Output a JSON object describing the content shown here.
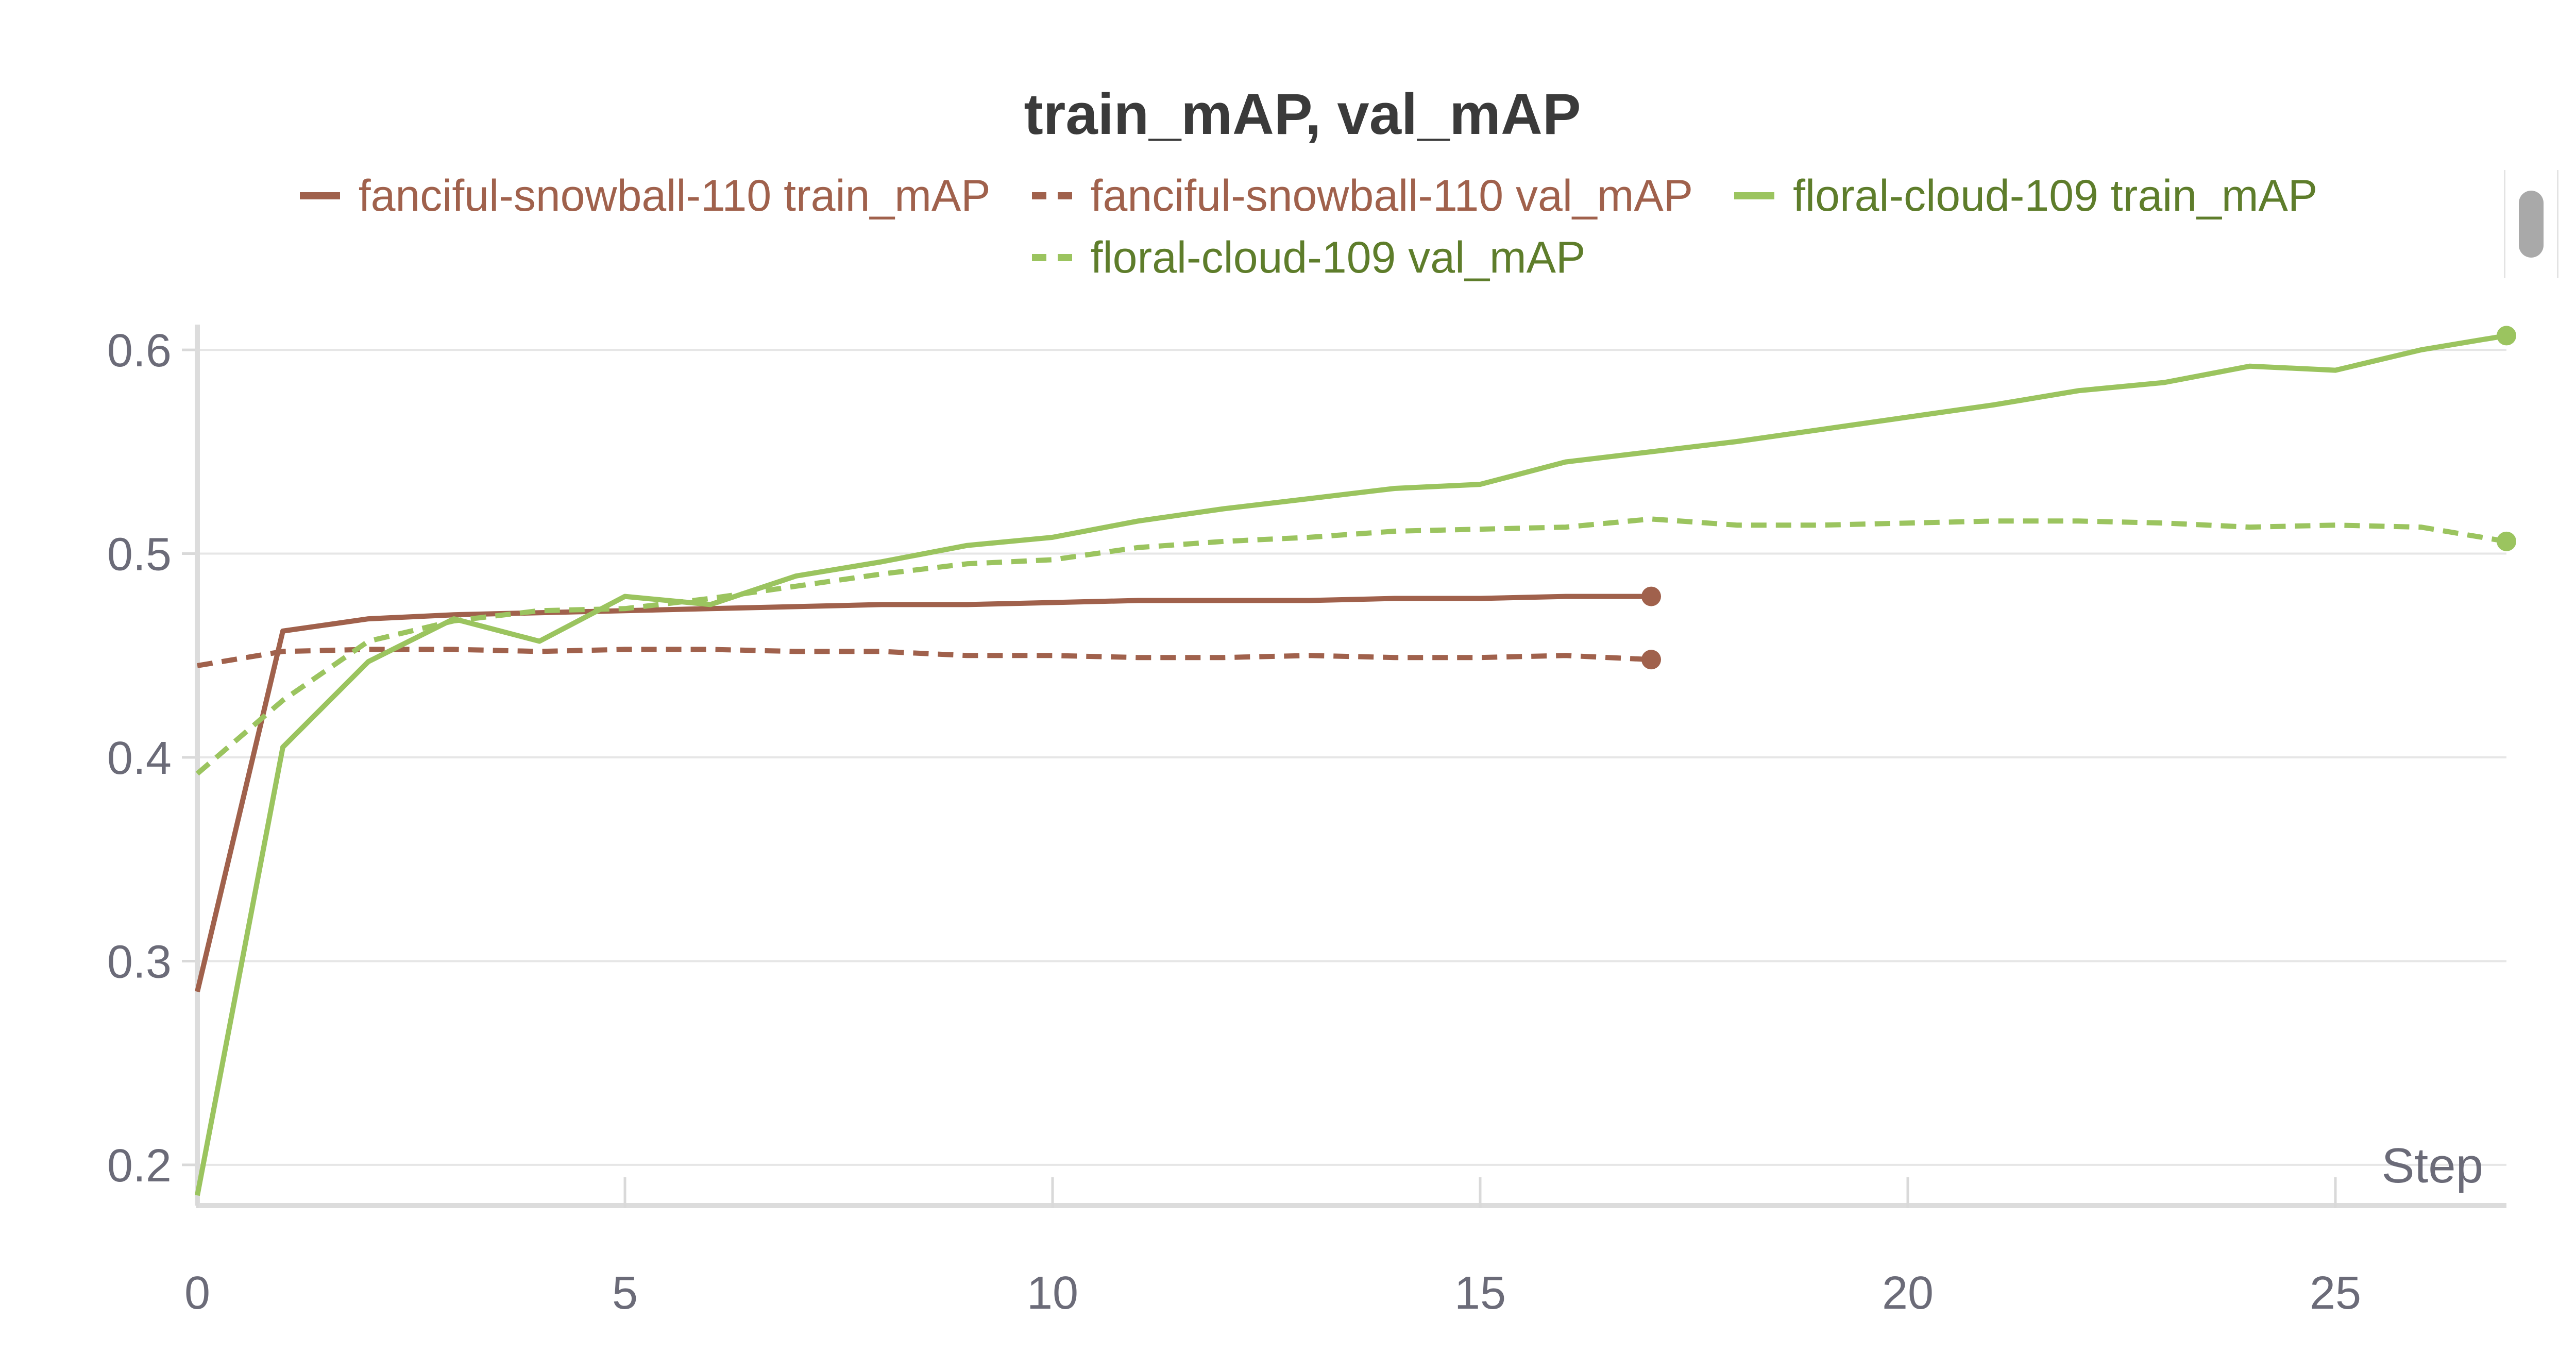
{
  "chart_data": {
    "type": "line",
    "title": "train_mAP, val_mAP",
    "xlabel": "Step",
    "ylabel": "",
    "xlim": [
      0,
      27
    ],
    "ylim": [
      0.18,
      0.62
    ],
    "x_ticks": [
      0,
      5,
      10,
      15,
      20,
      25
    ],
    "y_ticks": [
      0.2,
      0.3,
      0.4,
      0.5,
      0.6
    ],
    "x_tick_labels": [
      "0",
      "5",
      "10",
      "15",
      "20",
      "25"
    ],
    "y_tick_labels": [
      "0.2",
      "0.3",
      "0.4",
      "0.5",
      "0.6"
    ],
    "grid": true,
    "legend_position": "top",
    "series": [
      {
        "name": "fanciful-snowball-110 train_mAP",
        "color": "#a0614c",
        "text_color": "#a0614c",
        "dash": "solid",
        "x": [
          0,
          1,
          2,
          3,
          4,
          5,
          6,
          7,
          8,
          9,
          10,
          11,
          12,
          13,
          14,
          15,
          16,
          17
        ],
        "values": [
          0.285,
          0.462,
          0.468,
          0.47,
          0.471,
          0.472,
          0.473,
          0.474,
          0.475,
          0.475,
          0.476,
          0.477,
          0.477,
          0.477,
          0.478,
          0.478,
          0.479,
          0.479
        ]
      },
      {
        "name": "fanciful-snowball-110 val_mAP",
        "color": "#a0614c",
        "text_color": "#a0614c",
        "dash": "dashed",
        "x": [
          0,
          1,
          2,
          3,
          4,
          5,
          6,
          7,
          8,
          9,
          10,
          11,
          12,
          13,
          14,
          15,
          16,
          17
        ],
        "values": [
          0.445,
          0.452,
          0.453,
          0.453,
          0.452,
          0.453,
          0.453,
          0.452,
          0.452,
          0.45,
          0.45,
          0.449,
          0.449,
          0.45,
          0.449,
          0.449,
          0.45,
          0.448
        ]
      },
      {
        "name": "floral-cloud-109 train_mAP",
        "color": "#9bc45f",
        "text_color": "#5e7d2b",
        "dash": "solid",
        "x": [
          0,
          1,
          2,
          3,
          4,
          5,
          6,
          7,
          8,
          9,
          10,
          11,
          12,
          13,
          14,
          15,
          16,
          17,
          18,
          19,
          20,
          21,
          22,
          23,
          24,
          25,
          26,
          27
        ],
        "values": [
          0.185,
          0.405,
          0.447,
          0.468,
          0.457,
          0.479,
          0.475,
          0.489,
          0.496,
          0.504,
          0.508,
          0.516,
          0.522,
          0.527,
          0.532,
          0.534,
          0.545,
          0.55,
          0.555,
          0.561,
          0.567,
          0.573,
          0.58,
          0.584,
          0.592,
          0.59,
          0.6,
          0.607
        ]
      },
      {
        "name": "floral-cloud-109 val_mAP",
        "color": "#9bc45f",
        "text_color": "#5e7d2b",
        "dash": "dashed",
        "x": [
          0,
          1,
          2,
          3,
          4,
          5,
          6,
          7,
          8,
          9,
          10,
          11,
          12,
          13,
          14,
          15,
          16,
          17,
          18,
          19,
          20,
          21,
          22,
          23,
          24,
          25,
          26,
          27
        ],
        "values": [
          0.392,
          0.428,
          0.457,
          0.467,
          0.472,
          0.473,
          0.478,
          0.484,
          0.49,
          0.495,
          0.497,
          0.503,
          0.506,
          0.508,
          0.511,
          0.512,
          0.513,
          0.517,
          0.514,
          0.514,
          0.515,
          0.516,
          0.516,
          0.515,
          0.513,
          0.514,
          0.513,
          0.506
        ]
      }
    ]
  }
}
